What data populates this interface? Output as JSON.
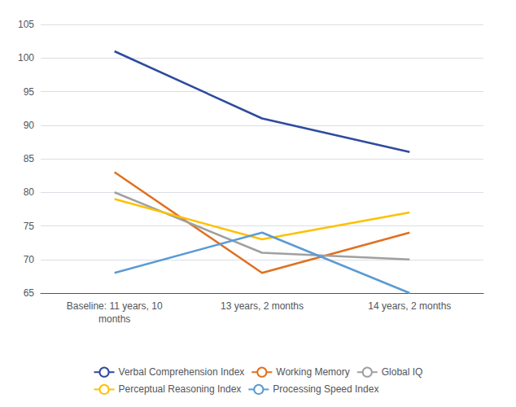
{
  "chart_data": {
    "type": "line",
    "categories": [
      "Baseline: 11 years, 10\nmonths",
      "13 years, 2 months",
      "14 years, 2 months"
    ],
    "series": [
      {
        "name": "Verbal Comprehension Index",
        "color": "#2E4B9E",
        "values": [
          101,
          91,
          86
        ]
      },
      {
        "name": "Working Memory",
        "color": "#E07020",
        "values": [
          83,
          68,
          74
        ]
      },
      {
        "name": "Global IQ",
        "color": "#A0A0A0",
        "values": [
          80,
          71,
          70
        ]
      },
      {
        "name": "Perceptual Reasoning Index",
        "color": "#FFC000",
        "values": [
          79,
          73,
          77
        ]
      },
      {
        "name": "Processing Speed Index",
        "color": "#5B9BD5",
        "values": [
          68,
          74,
          65
        ]
      }
    ],
    "ylim": [
      65,
      105
    ],
    "yticks": [
      65,
      70,
      75,
      80,
      85,
      90,
      95,
      100,
      105
    ],
    "grid": true,
    "legend": "bottom"
  }
}
